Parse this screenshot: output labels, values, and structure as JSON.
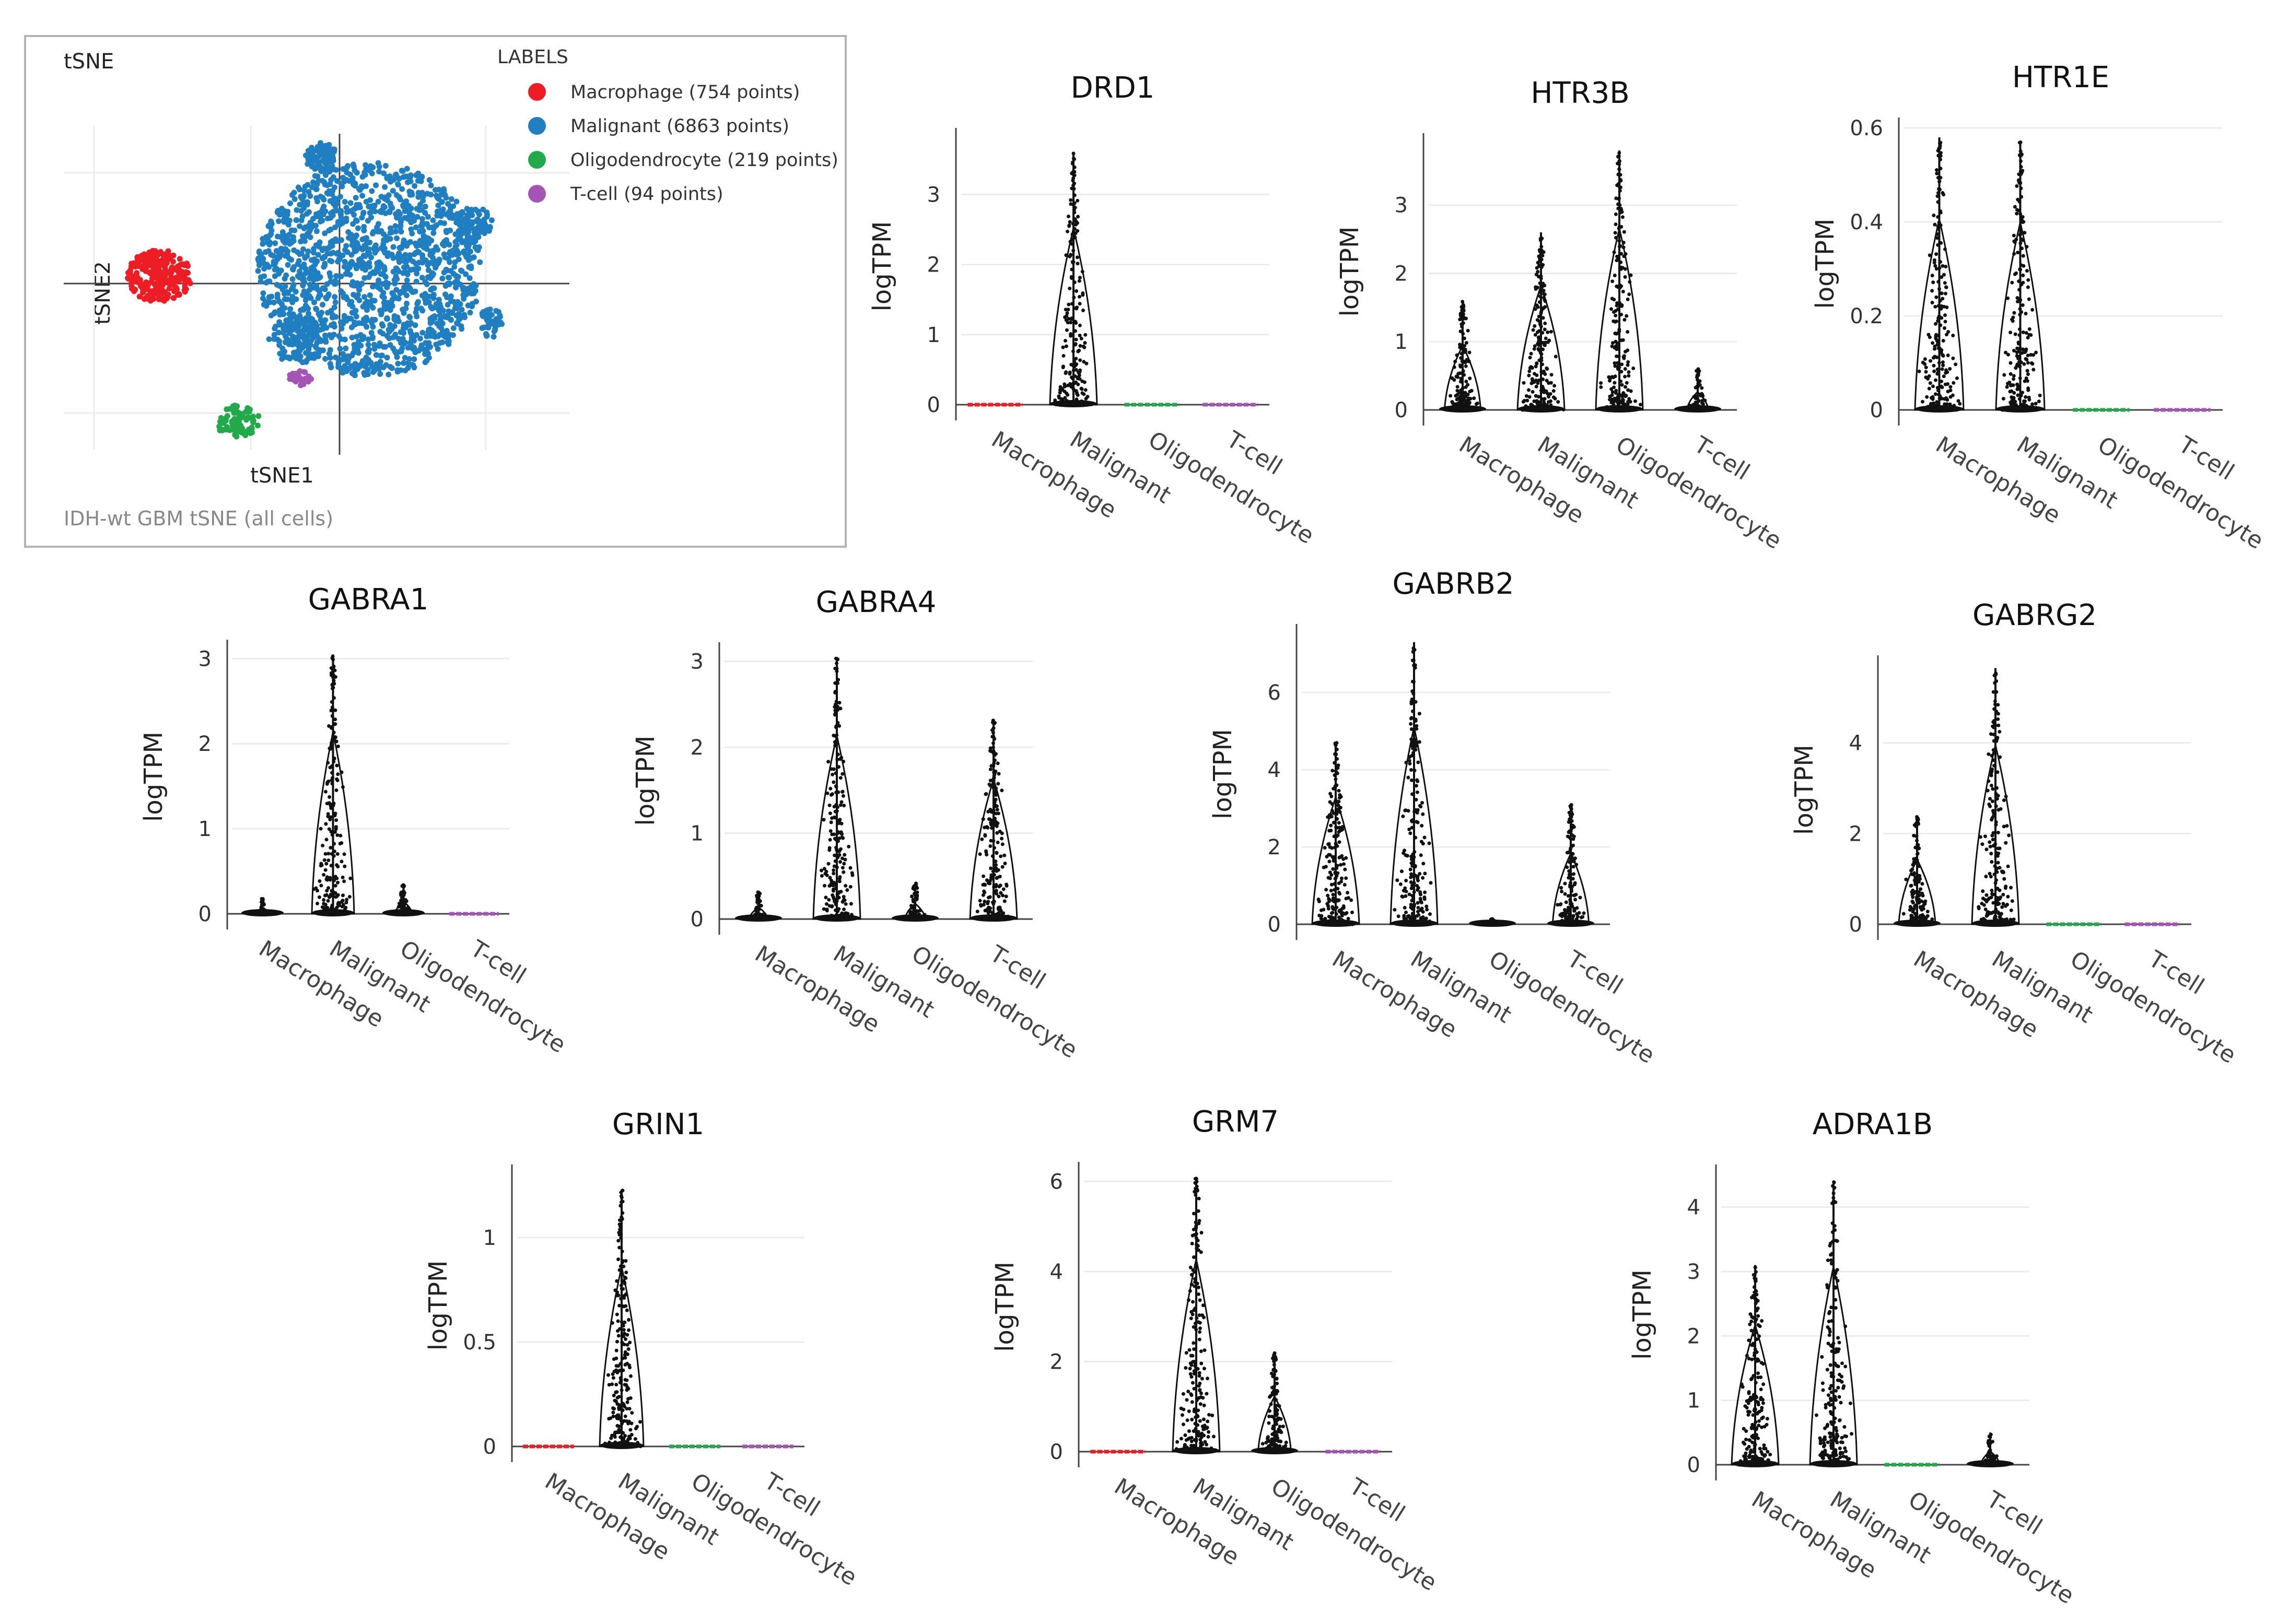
{
  "chart_data": [
    {
      "type": "scatter",
      "title": "tSNE",
      "footer": "IDH-wt GBM tSNE (all cells)",
      "xlabel": "tSNE1",
      "ylabel": "tSNE2",
      "legend_title": "LABELS",
      "legend_position": "top-right",
      "series": [
        {
          "name": "Macrophage (754 points)",
          "color": "#ee1c25"
        },
        {
          "name": "Malignant (6863 points)",
          "color": "#1f7fc0"
        },
        {
          "name": "Oligodendrocyte (219 points)",
          "color": "#22a94a"
        },
        {
          "name": "T-cell (94 points)",
          "color": "#a454b4"
        }
      ]
    },
    {
      "type": "violin",
      "title": "DRD1",
      "ylabel": "logTPM",
      "categories": [
        "Macrophage",
        "Malignant",
        "Oligodendrocyte",
        "T-cell"
      ],
      "ylim": [
        -0.1,
        3.8
      ],
      "yticks": [
        0,
        1,
        2,
        3
      ],
      "ytick_labels": [
        "0",
        "1",
        "2",
        "3"
      ],
      "max_values": [
        0,
        3.6,
        0,
        0
      ]
    },
    {
      "type": "violin",
      "title": "HTR3B",
      "ylabel": "logTPM",
      "categories": [
        "Macrophage",
        "Malignant",
        "Oligodendrocyte",
        "T-cell"
      ],
      "ylim": [
        -0.1,
        3.9
      ],
      "yticks": [
        0,
        1,
        2,
        3
      ],
      "ytick_labels": [
        "0",
        "1",
        "2",
        "3"
      ],
      "max_values": [
        1.6,
        2.6,
        3.8,
        0.6
      ]
    },
    {
      "type": "violin",
      "title": "HTR1E",
      "ylabel": "logTPM",
      "categories": [
        "Macrophage",
        "Malignant",
        "Oligodendrocyte",
        "T-cell"
      ],
      "ylim": [
        -0.03,
        0.6
      ],
      "yticks": [
        0,
        0.2,
        0.4,
        0.6
      ],
      "ytick_labels": [
        "0",
        "0.2",
        "0.4",
        "0.6"
      ],
      "max_values": [
        0.58,
        0.57,
        0,
        0
      ]
    },
    {
      "type": "violin",
      "title": "GABRA1",
      "ylabel": "logTPM",
      "categories": [
        "Macrophage",
        "Malignant",
        "Oligodendrocyte",
        "T-cell"
      ],
      "ylim": [
        -0.1,
        3.1
      ],
      "yticks": [
        0,
        1,
        2,
        3
      ],
      "ytick_labels": [
        "0",
        "1",
        "2",
        "3"
      ],
      "max_values": [
        0.18,
        3.05,
        0.35,
        0
      ]
    },
    {
      "type": "violin",
      "title": "GABRA4",
      "ylabel": "logTPM",
      "categories": [
        "Macrophage",
        "Malignant",
        "Oligodendrocyte",
        "T-cell"
      ],
      "ylim": [
        -0.1,
        3.1
      ],
      "yticks": [
        0,
        1,
        2,
        3
      ],
      "ytick_labels": [
        "0",
        "1",
        "2",
        "3"
      ],
      "max_values": [
        0.33,
        3.05,
        0.42,
        2.33
      ]
    },
    {
      "type": "violin",
      "title": "GABRB2",
      "ylabel": "logTPM",
      "categories": [
        "Macrophage",
        "Malignant",
        "Oligodendrocyte",
        "T-cell"
      ],
      "ylim": [
        -0.2,
        7.5
      ],
      "yticks": [
        0,
        2,
        4,
        6
      ],
      "ytick_labels": [
        "0",
        "2",
        "4",
        "6"
      ],
      "max_values": [
        4.7,
        7.3,
        0.15,
        3.1
      ]
    },
    {
      "type": "violin",
      "title": "GABRG2",
      "ylabel": "logTPM",
      "categories": [
        "Macrophage",
        "Malignant",
        "Oligodendrocyte",
        "T-cell"
      ],
      "ylim": [
        -0.2,
        5.7
      ],
      "yticks": [
        0,
        2,
        4
      ],
      "ytick_labels": [
        "0",
        "2",
        "4"
      ],
      "max_values": [
        2.4,
        5.65,
        0,
        0
      ]
    },
    {
      "type": "violin",
      "title": "GRIN1",
      "ylabel": "logTPM",
      "categories": [
        "Macrophage",
        "Malignant",
        "Oligodendrocyte",
        "T-cell"
      ],
      "ylim": [
        -0.05,
        1.3
      ],
      "yticks": [
        0,
        0.5,
        1
      ],
      "ytick_labels": [
        "0",
        "0.5",
        "1"
      ],
      "max_values": [
        0,
        1.23,
        0,
        0
      ]
    },
    {
      "type": "violin",
      "title": "GRM7",
      "ylabel": "logTPM",
      "categories": [
        "Macrophage",
        "Malignant",
        "Oligodendrocyte",
        "T-cell"
      ],
      "ylim": [
        -0.2,
        6.2
      ],
      "yticks": [
        0,
        2,
        4,
        6
      ],
      "ytick_labels": [
        "0",
        "2",
        "4",
        "6"
      ],
      "max_values": [
        0,
        6.1,
        2.2,
        0
      ]
    },
    {
      "type": "violin",
      "title": "ADRA1B",
      "ylabel": "logTPM",
      "categories": [
        "Macrophage",
        "Malignant",
        "Oligodendrocyte",
        "T-cell"
      ],
      "ylim": [
        -0.1,
        4.5
      ],
      "yticks": [
        0,
        1,
        2,
        3,
        4
      ],
      "ytick_labels": [
        "0",
        "1",
        "2",
        "3",
        "4"
      ],
      "max_values": [
        3.1,
        4.4,
        0,
        0.5
      ]
    }
  ]
}
